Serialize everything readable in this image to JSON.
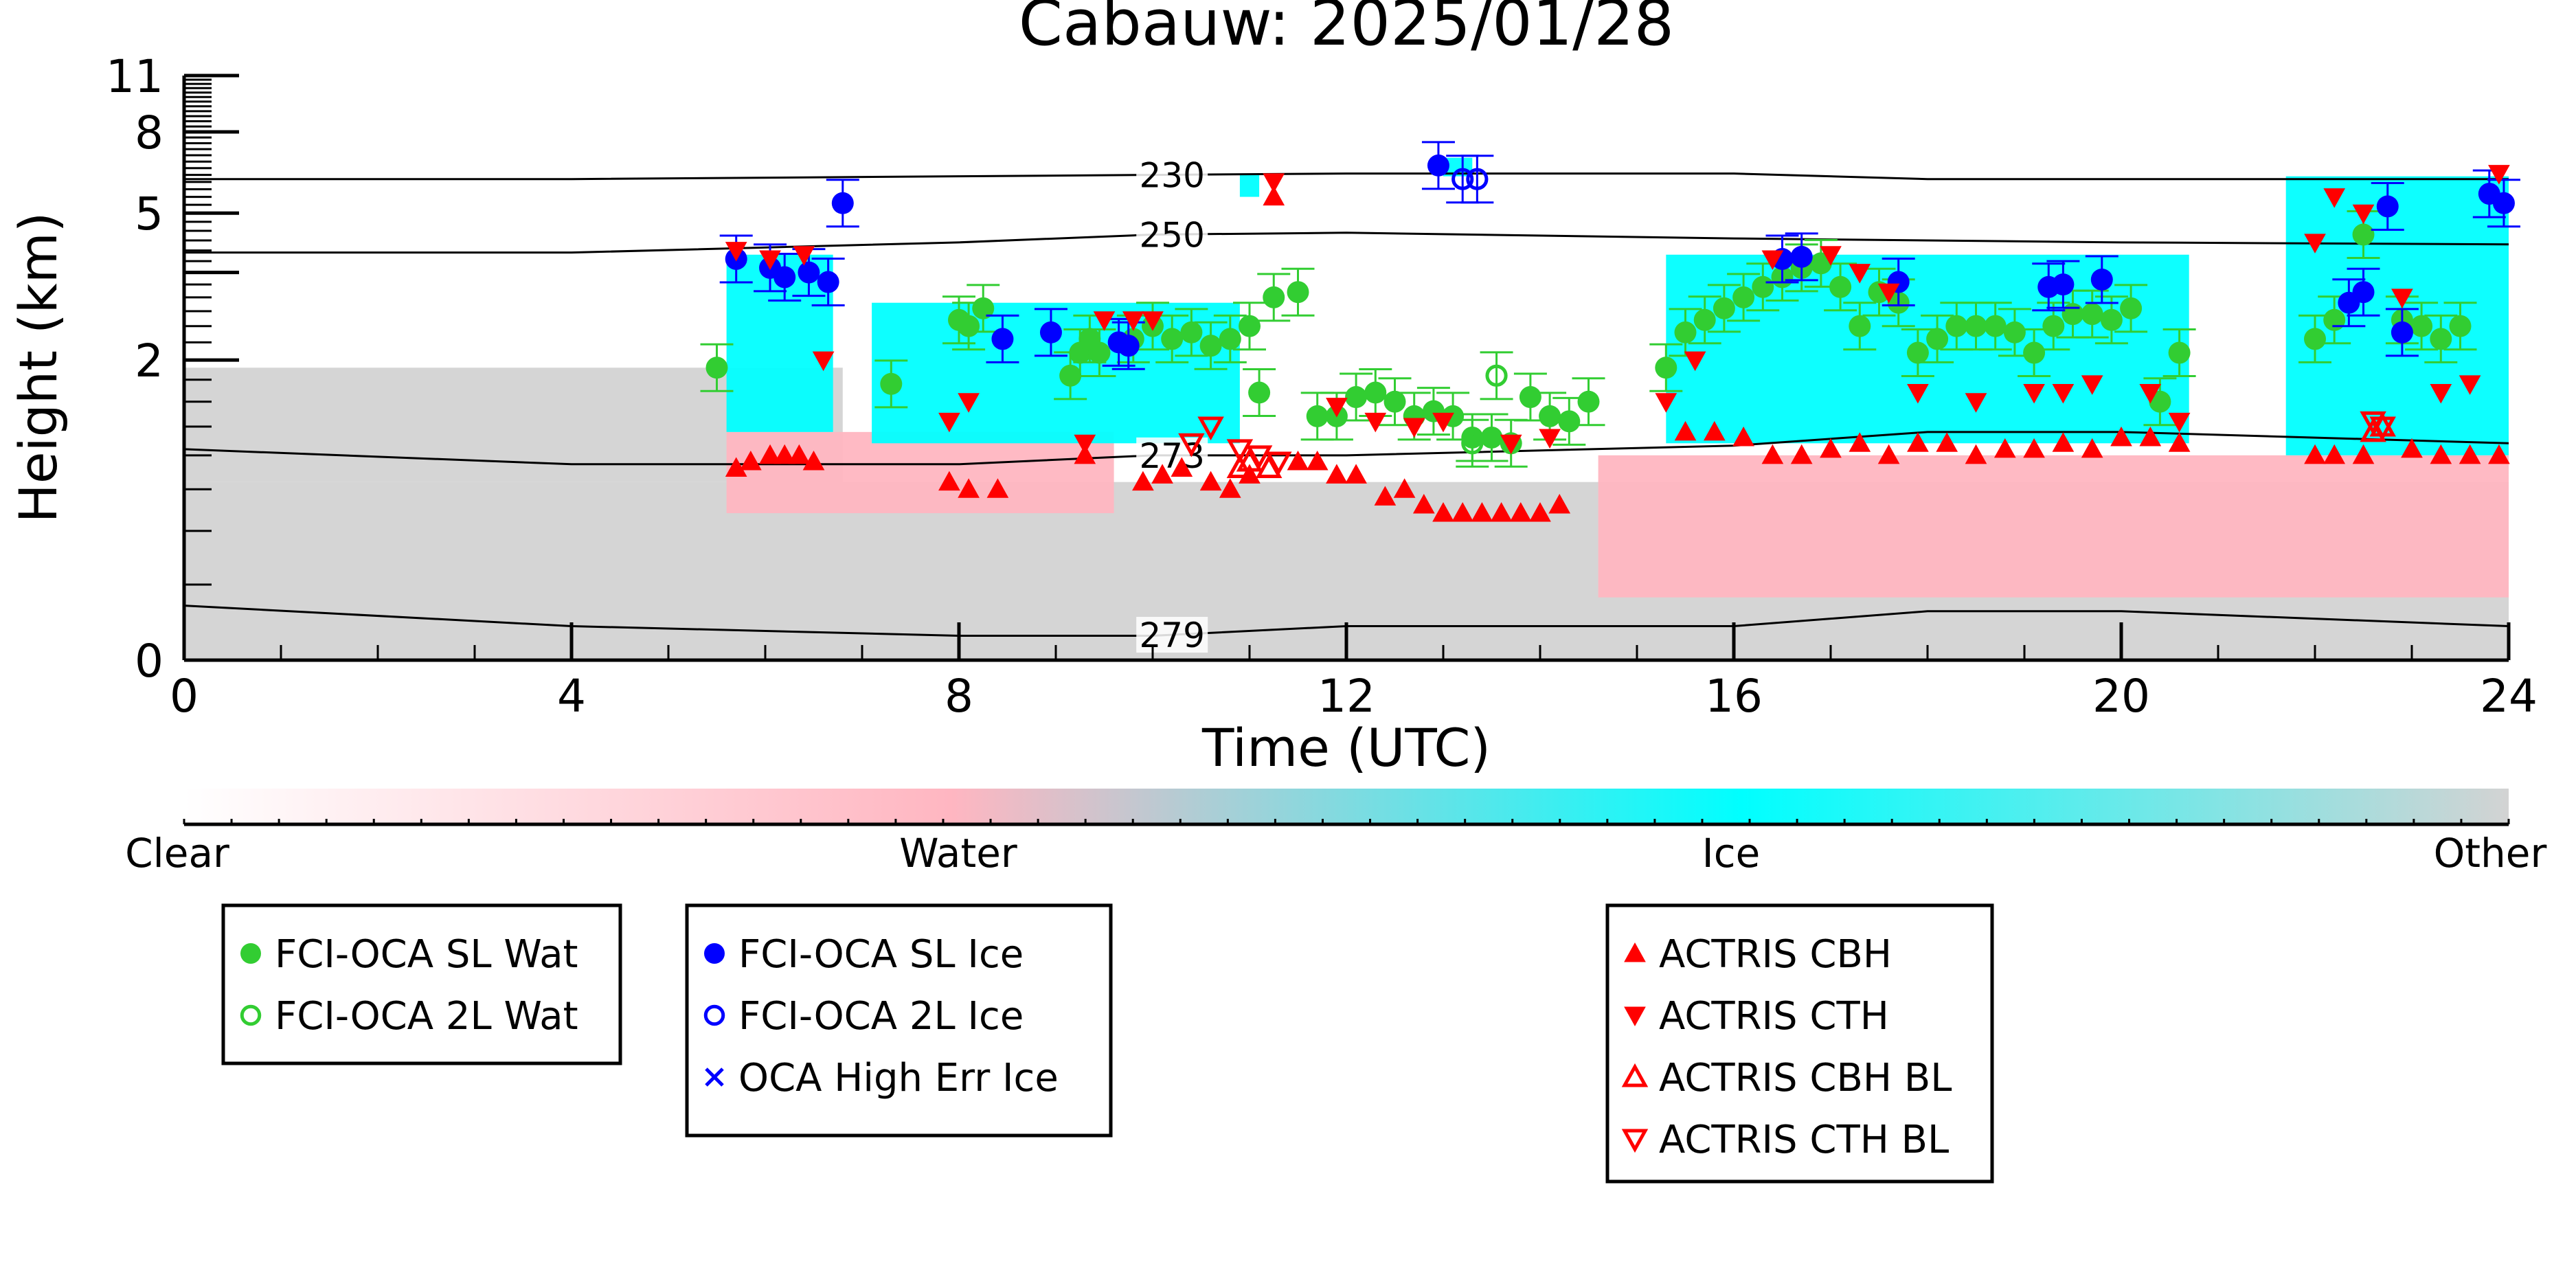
{
  "chart_data": {
    "type": "scatter",
    "title": "Cabauw: 2025/01/28",
    "xlabel": "Time (UTC)",
    "ylabel": "Height (km)",
    "xlim": [
      0,
      24
    ],
    "x_ticks": [
      0,
      4,
      8,
      12,
      16,
      20,
      24
    ],
    "x_tick_labels": [
      "0",
      "4",
      "8",
      "12",
      "16",
      "20",
      "24"
    ],
    "ylim": [
      0,
      11
    ],
    "y_scale": "log(1 + h/0.5)",
    "y_ticks": [
      0,
      2,
      3.5,
      5,
      8,
      11
    ],
    "y_tick_labels": [
      "0",
      "2",
      "",
      "5",
      "8",
      "11"
    ],
    "grid": false,
    "background_classes": {
      "colorbar_labels": [
        "Clear",
        "Water",
        "Ice",
        "Other"
      ],
      "colors": {
        "clear": "#ffffff",
        "water": "#ffb6c1",
        "ice": "#00ffff",
        "other": "#d3d3d3"
      },
      "regions": [
        {
          "class": "other",
          "x": [
            0,
            24
          ],
          "y": [
            0,
            0.8
          ]
        },
        {
          "class": "other",
          "x": [
            0,
            6.8
          ],
          "y": [
            0.8,
            1.9
          ]
        },
        {
          "class": "water",
          "x": [
            5.6,
            9.6
          ],
          "y": [
            0.6,
            1.2
          ]
        },
        {
          "class": "ice",
          "x": [
            5.6,
            6.7
          ],
          "y": [
            1.2,
            3.9
          ]
        },
        {
          "class": "ice",
          "x": [
            7.1,
            10.9
          ],
          "y": [
            1.1,
            2.9
          ]
        },
        {
          "class": "ice",
          "x": [
            10.9,
            11.1
          ],
          "y": [
            5.5,
            6.3
          ]
        },
        {
          "class": "ice",
          "x": [
            13.0,
            13.3
          ],
          "y": [
            6.2,
            6.9
          ]
        },
        {
          "class": "ice",
          "x": [
            15.3,
            20.7
          ],
          "y": [
            1.1,
            3.9
          ]
        },
        {
          "class": "water",
          "x": [
            14.6,
            24
          ],
          "y": [
            0.2,
            1.0
          ]
        },
        {
          "class": "ice",
          "x": [
            21.7,
            24
          ],
          "y": [
            1.0,
            6.2
          ]
        }
      ]
    },
    "isotherms": [
      {
        "label": "230",
        "y": [
          6.1,
          6.1,
          6.2,
          6.25,
          6.3,
          6.3,
          6.1,
          6.1,
          6.1
        ],
        "x": [
          0,
          4,
          8,
          10,
          12,
          16,
          18,
          20,
          24
        ]
      },
      {
        "label": "250",
        "y": [
          3.95,
          3.95,
          4.2,
          4.4,
          4.45,
          4.3,
          4.25,
          4.2,
          4.15
        ],
        "x": [
          0,
          4,
          8,
          10,
          12,
          16,
          18,
          20,
          24
        ]
      },
      {
        "label": "273",
        "y": [
          1.05,
          0.93,
          0.93,
          1.0,
          1.0,
          1.08,
          1.2,
          1.2,
          1.1
        ],
        "x": [
          0,
          4,
          8,
          10,
          12,
          16,
          18,
          20,
          24
        ]
      },
      {
        "label": "279",
        "y": [
          0.17,
          0.1,
          0.07,
          0.07,
          0.1,
          0.1,
          0.15,
          0.15,
          0.1
        ],
        "x": [
          0,
          4,
          8,
          10,
          12,
          16,
          18,
          20,
          24
        ]
      }
    ],
    "isotherm_label_x": 10.2,
    "series": [
      {
        "name": "FCI-OCA SL Wat",
        "marker": "filled-circle",
        "color": "#32cd32",
        "x": [
          5.5,
          7.3,
          8.0,
          8.1,
          8.25,
          9.15,
          9.25,
          9.35,
          9.45,
          9.8,
          10.0,
          10.2,
          10.4,
          10.6,
          10.8,
          11.0,
          11.25,
          11.1,
          11.5,
          11.7,
          11.9,
          12.1,
          12.3,
          12.5,
          12.7,
          12.9,
          13.1,
          13.3,
          13.5,
          13.7,
          13.9,
          14.1,
          14.3,
          14.5,
          15.3,
          15.5,
          15.7,
          15.9,
          16.1,
          16.3,
          16.5,
          16.7,
          16.9,
          17.1,
          17.3,
          17.5,
          17.7,
          17.9,
          18.1,
          18.3,
          18.5,
          18.7,
          18.9,
          19.1,
          19.3,
          19.5,
          19.7,
          19.9,
          20.1,
          20.4,
          20.6,
          22.0,
          22.2,
          22.5,
          22.9,
          23.1,
          23.3,
          23.5
        ],
        "y": [
          1.9,
          1.7,
          2.6,
          2.5,
          2.8,
          1.8,
          2.1,
          2.3,
          2.1,
          2.3,
          2.5,
          2.3,
          2.4,
          2.2,
          2.3,
          2.5,
          3.0,
          1.6,
          3.1,
          1.35,
          1.35,
          1.55,
          1.6,
          1.5,
          1.35,
          1.4,
          1.35,
          1.15,
          1.15,
          1.1,
          1.55,
          1.35,
          1.3,
          1.5,
          1.9,
          2.4,
          2.6,
          2.8,
          3.0,
          3.2,
          3.4,
          3.6,
          3.7,
          3.2,
          2.5,
          3.1,
          2.9,
          2.1,
          2.3,
          2.5,
          2.5,
          2.5,
          2.4,
          2.1,
          2.5,
          2.7,
          2.7,
          2.6,
          2.8,
          1.5,
          2.1,
          2.3,
          2.6,
          4.4,
          2.6,
          2.5,
          2.3,
          2.5
        ]
      },
      {
        "name": "FCI-OCA 2L Wat",
        "marker": "open-circle",
        "color": "#32cd32",
        "x": [
          13.3,
          13.55
        ],
        "y": [
          1.1,
          1.8
        ]
      },
      {
        "name": "FCI-OCA SL Ice",
        "marker": "filled-circle",
        "color": "#0000ff",
        "x": [
          5.7,
          6.05,
          6.2,
          6.45,
          6.65,
          6.8,
          8.45,
          8.95,
          9.65,
          9.75,
          12.95,
          16.5,
          16.7,
          17.7,
          19.25,
          19.4,
          19.8,
          22.35,
          22.5,
          22.75,
          22.9,
          23.8,
          23.95
        ],
        "y": [
          3.8,
          3.6,
          3.4,
          3.5,
          3.3,
          5.3,
          2.3,
          2.4,
          2.25,
          2.2,
          6.6,
          3.8,
          3.85,
          3.3,
          3.2,
          3.25,
          3.35,
          2.9,
          3.1,
          5.2,
          2.4,
          5.6,
          5.3
        ]
      },
      {
        "name": "FCI-OCA 2L Ice",
        "marker": "open-circle",
        "color": "#0000ff",
        "x": [
          13.2,
          13.35
        ],
        "y": [
          6.1,
          6.1
        ]
      },
      {
        "name": "OCA High Err Ice",
        "marker": "x",
        "color": "#0000ff",
        "x": [],
        "y": []
      },
      {
        "name": "ACTRIS CBH",
        "marker": "triangle-up",
        "color": "#ff0000",
        "x": [
          5.7,
          5.85,
          6.05,
          6.2,
          6.35,
          6.5,
          7.9,
          8.1,
          8.4,
          9.3,
          9.9,
          10.1,
          10.3,
          10.6,
          10.8,
          11.0,
          11.25,
          11.5,
          11.7,
          11.9,
          12.1,
          12.4,
          12.6,
          12.8,
          13.0,
          13.2,
          13.4,
          13.6,
          13.8,
          14.0,
          14.2,
          15.5,
          15.8,
          16.1,
          16.4,
          16.7,
          17.0,
          17.3,
          17.6,
          17.9,
          18.2,
          18.5,
          18.8,
          19.1,
          19.4,
          19.7,
          20.0,
          20.3,
          20.6,
          22.0,
          22.2,
          22.5,
          23.0,
          23.3,
          23.6,
          23.9
        ],
        "y": [
          0.9,
          0.95,
          1.0,
          1.0,
          1.0,
          0.95,
          0.8,
          0.75,
          0.75,
          1.0,
          0.8,
          0.85,
          0.9,
          0.8,
          0.75,
          0.85,
          5.5,
          0.95,
          0.95,
          0.85,
          0.85,
          0.7,
          0.75,
          0.65,
          0.6,
          0.6,
          0.6,
          0.6,
          0.6,
          0.6,
          0.65,
          1.2,
          1.2,
          1.15,
          1.0,
          1.0,
          1.05,
          1.1,
          1.0,
          1.1,
          1.1,
          1.0,
          1.05,
          1.05,
          1.1,
          1.05,
          1.15,
          1.15,
          1.1,
          1.0,
          1.0,
          1.0,
          1.05,
          1.0,
          1.0,
          1.0
        ]
      },
      {
        "name": "ACTRIS CTH",
        "marker": "triangle-down",
        "color": "#ff0000",
        "x": [
          5.7,
          6.05,
          6.4,
          6.6,
          7.9,
          8.1,
          9.3,
          9.5,
          9.8,
          10.0,
          11.25,
          11.9,
          12.3,
          12.7,
          13.0,
          13.7,
          14.1,
          15.3,
          15.6,
          16.4,
          17.0,
          17.3,
          17.6,
          17.9,
          18.5,
          19.1,
          19.4,
          19.7,
          20.3,
          20.6,
          22.0,
          22.2,
          22.5,
          22.9,
          23.3,
          23.6,
          23.9
        ],
        "y": [
          4.0,
          3.8,
          3.9,
          2.0,
          1.3,
          1.5,
          1.1,
          2.6,
          2.6,
          2.6,
          6.0,
          1.45,
          1.3,
          1.25,
          1.3,
          1.1,
          1.15,
          1.5,
          2.0,
          3.8,
          3.9,
          3.5,
          3.1,
          1.6,
          1.5,
          1.6,
          1.6,
          1.7,
          1.6,
          1.3,
          4.2,
          5.5,
          5.0,
          3.0,
          1.6,
          1.7,
          6.3
        ]
      },
      {
        "name": "ACTRIS CBH BL",
        "marker": "open-triangle-up",
        "color": "#ff0000",
        "x": [
          10.9,
          11.0,
          11.2,
          22.6,
          22.7
        ],
        "y": [
          0.9,
          0.95,
          0.9,
          1.2,
          1.25
        ]
      },
      {
        "name": "ACTRIS CTH BL",
        "marker": "open-triangle-down",
        "color": "#ff0000",
        "x": [
          10.4,
          10.6,
          10.9,
          11.1,
          11.3,
          22.6,
          22.7
        ],
        "y": [
          1.1,
          1.25,
          1.05,
          1.0,
          0.95,
          1.3,
          1.25
        ]
      }
    ]
  },
  "legend_boxes": [
    {
      "entries": [
        "FCI-OCA SL Wat",
        "FCI-OCA 2L Wat"
      ]
    },
    {
      "entries": [
        "FCI-OCA SL Ice",
        "FCI-OCA 2L Ice",
        "OCA High Err Ice"
      ]
    },
    {
      "entries": [
        "ACTRIS CBH",
        "ACTRIS CTH",
        "ACTRIS CBH BL",
        "ACTRIS CTH BL"
      ]
    }
  ]
}
